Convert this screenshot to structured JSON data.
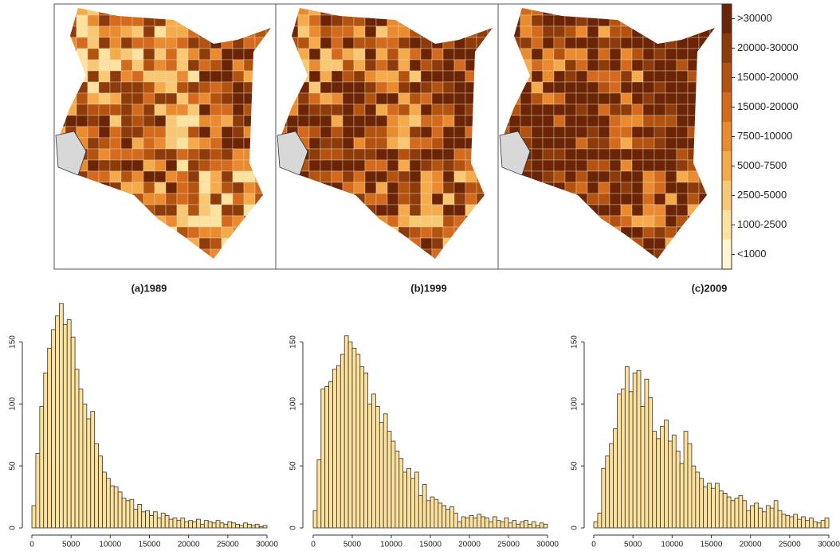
{
  "legend": {
    "labels": [
      ">30000",
      "20000-30000",
      "15000-20000",
      "15000-20000",
      "7500-10000",
      "5000-7500",
      "2500-5000",
      "1000-2500",
      "<1000"
    ],
    "colors": [
      "#6b2506",
      "#8e3b0b",
      "#b4520f",
      "#d46a1d",
      "#ea8b30",
      "#f5aa4c",
      "#f9c874",
      "#fde2a0",
      "#fff5d2"
    ]
  },
  "chart_data": [
    {
      "type": "histogram",
      "title": "(a)1989",
      "color": "#fde09a",
      "bins": [
        0,
        500,
        1000,
        1500,
        2000,
        2500,
        3000,
        3500,
        4000,
        4500,
        5000,
        5500,
        6000,
        6500,
        7000,
        7500,
        8000,
        8500,
        9000,
        9500,
        10000,
        10500,
        11000,
        11500,
        12000,
        12500,
        13000,
        13500,
        14000,
        14500,
        15000,
        15500,
        16000,
        16500,
        17000,
        17500,
        18000,
        18500,
        19000,
        19500,
        20000,
        20500,
        21000,
        21500,
        22000,
        22500,
        23000,
        23500,
        24000,
        24500,
        25000,
        25500,
        26000,
        26500,
        27000,
        27500,
        28000,
        28500,
        29000,
        29500,
        30000
      ],
      "values": [
        18,
        60,
        98,
        125,
        145,
        160,
        171,
        181,
        164,
        168,
        154,
        128,
        112,
        100,
        88,
        94,
        68,
        58,
        45,
        40,
        34,
        33,
        29,
        24,
        22,
        23,
        15,
        19,
        13,
        14,
        10,
        13,
        8,
        12,
        10,
        7,
        8,
        6,
        8,
        5,
        6,
        5,
        7,
        3,
        6,
        5,
        4,
        6,
        4,
        3,
        5,
        4,
        3,
        2,
        4,
        3,
        2,
        3,
        1,
        2
      ],
      "xlim": [
        0,
        30000
      ],
      "xticks": [
        0,
        5000,
        10000,
        15000,
        20000,
        25000,
        30000
      ],
      "ylim": [
        0,
        185
      ],
      "yticks": [
        0,
        50,
        100,
        150
      ]
    },
    {
      "type": "histogram",
      "title": "(b)1999",
      "color": "#fde09a",
      "bins": [
        0,
        500,
        1000,
        1500,
        2000,
        2500,
        3000,
        3500,
        4000,
        4500,
        5000,
        5500,
        6000,
        6500,
        7000,
        7500,
        8000,
        8500,
        9000,
        9500,
        10000,
        10500,
        11000,
        11500,
        12000,
        12500,
        13000,
        13500,
        14000,
        14500,
        15000,
        15500,
        16000,
        16500,
        17000,
        17500,
        18000,
        18500,
        19000,
        19500,
        20000,
        20500,
        21000,
        21500,
        22000,
        22500,
        23000,
        23500,
        24000,
        24500,
        25000,
        25500,
        26000,
        26500,
        27000,
        27500,
        28000,
        28500,
        29000,
        29500,
        30000
      ],
      "values": [
        14,
        55,
        112,
        114,
        118,
        128,
        131,
        140,
        155,
        150,
        145,
        140,
        130,
        125,
        100,
        108,
        98,
        85,
        92,
        78,
        70,
        62,
        56,
        45,
        48,
        40,
        45,
        26,
        35,
        22,
        25,
        23,
        20,
        18,
        15,
        17,
        12,
        5,
        9,
        8,
        10,
        8,
        11,
        9,
        8,
        5,
        9,
        6,
        5,
        8,
        4,
        6,
        3,
        5,
        6,
        3,
        5,
        2,
        4,
        3
      ],
      "xlim": [
        0,
        30000
      ],
      "xticks": [
        0,
        5000,
        10000,
        15000,
        20000,
        25000,
        30000
      ],
      "ylim": [
        0,
        185
      ],
      "yticks": [
        0,
        50,
        100,
        150
      ]
    },
    {
      "type": "histogram",
      "title": "(c)2009",
      "color": "#fde09a",
      "bins": [
        0,
        500,
        1000,
        1500,
        2000,
        2500,
        3000,
        3500,
        4000,
        4500,
        5000,
        5500,
        6000,
        6500,
        7000,
        7500,
        8000,
        8500,
        9000,
        9500,
        10000,
        10500,
        11000,
        11500,
        12000,
        12500,
        13000,
        13500,
        14000,
        14500,
        15000,
        15500,
        16000,
        16500,
        17000,
        17500,
        18000,
        18500,
        19000,
        19500,
        20000,
        20500,
        21000,
        21500,
        22000,
        22500,
        23000,
        23500,
        24000,
        24500,
        25000,
        25500,
        26000,
        26500,
        27000,
        27500,
        28000,
        28500,
        29000,
        29500,
        30000
      ],
      "values": [
        5,
        12,
        48,
        58,
        68,
        80,
        108,
        112,
        130,
        110,
        125,
        127,
        98,
        120,
        105,
        78,
        72,
        82,
        87,
        70,
        75,
        62,
        52,
        78,
        68,
        50,
        45,
        40,
        33,
        36,
        32,
        36,
        30,
        28,
        25,
        22,
        24,
        26,
        22,
        14,
        18,
        20,
        16,
        13,
        18,
        16,
        22,
        14,
        11,
        10,
        9,
        11,
        7,
        9,
        6,
        8,
        5,
        4,
        6,
        8
      ],
      "xlim": [
        0,
        30000
      ],
      "xticks": [
        0,
        5000,
        10000,
        15000,
        20000,
        25000,
        30000
      ],
      "ylim": [
        0,
        185
      ],
      "yticks": [
        0,
        50,
        100,
        150
      ]
    }
  ]
}
